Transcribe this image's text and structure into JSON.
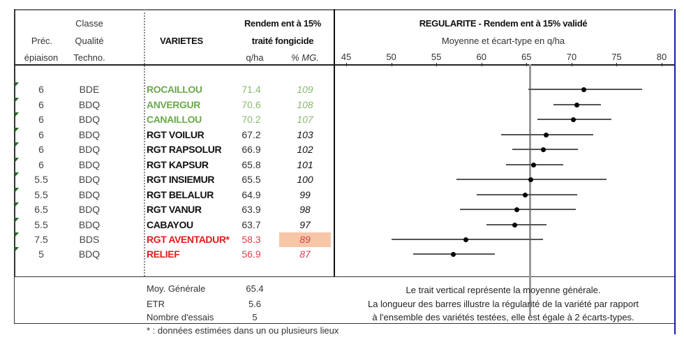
{
  "headers": {
    "prec_line1": "Préc.",
    "prec_line2": "épiaison",
    "classe_line1": "Classe",
    "classe_line2": "Qualité",
    "classe_line3": "Techno.",
    "varietes": "VARIETES",
    "rendement_line1": "Rendem ent à 15%",
    "rendement_line2": "traité fongicide",
    "unit_qha": "q/ha",
    "unit_pct": "% MG.",
    "chart_title": "REGULARITE - Rendem ent à 15% validé",
    "chart_subtitle": "Moyenne et écart-type en q/ha"
  },
  "rows": [
    {
      "prec": "6",
      "classe": "BDE",
      "variete": "ROCAILLOU",
      "qha": "71.4",
      "pct": "109",
      "group": "green"
    },
    {
      "prec": "6",
      "classe": "BDQ",
      "variete": "ANVERGUR",
      "qha": "70.6",
      "pct": "108",
      "group": "green"
    },
    {
      "prec": "6",
      "classe": "BDQ",
      "variete": "CANAILLOU",
      "qha": "70.2",
      "pct": "107",
      "group": "green"
    },
    {
      "prec": "6",
      "classe": "BDQ",
      "variete": "RGT VOILUR",
      "qha": "67.2",
      "pct": "103",
      "group": "black"
    },
    {
      "prec": "6",
      "classe": "BDQ",
      "variete": "RGT RAPSOLUR",
      "qha": "66.9",
      "pct": "102",
      "group": "black"
    },
    {
      "prec": "6",
      "classe": "BDQ",
      "variete": "RGT KAPSUR",
      "qha": "65.8",
      "pct": "101",
      "group": "black"
    },
    {
      "prec": "5.5",
      "classe": "BDQ",
      "variete": "RGT INSIEMUR",
      "qha": "65.5",
      "pct": "100",
      "group": "black"
    },
    {
      "prec": "5.5",
      "classe": "BDQ",
      "variete": "RGT BELALUR",
      "qha": "64.9",
      "pct": "99",
      "group": "black"
    },
    {
      "prec": "6.5",
      "classe": "BDQ",
      "variete": "RGT VANUR",
      "qha": "63.9",
      "pct": "98",
      "group": "black"
    },
    {
      "prec": "5.5",
      "classe": "BDQ",
      "variete": "CABAYOU",
      "qha": "63.7",
      "pct": "97",
      "group": "black"
    },
    {
      "prec": "7.5",
      "classe": "BDS",
      "variete": "RGT AVENTADUR*",
      "qha": "58.3",
      "pct": "89",
      "group": "red",
      "highlight": true
    },
    {
      "prec": "5",
      "classe": "BDQ",
      "variete": "RELIEF",
      "qha": "56.9",
      "pct": "87",
      "group": "red"
    }
  ],
  "summary": {
    "moy_label": "Moy. Générale",
    "moy_value": "65.4",
    "etr_label": "ETR",
    "etr_value": "5.6",
    "essais_label": "Nombre d'essais",
    "essais_value": "5",
    "footnote": "* : données estimées dans un ou plusieurs lieux"
  },
  "notes": {
    "line1": "Le trait vertical représente la moyenne générale.",
    "line2": "La longueur des barres illustre la régularité de la variété par rapport",
    "line3": "à l'ensemble des variétés testées, elle est égale à 2 écarts-types."
  },
  "colors": {
    "green_variety": "#6aaa4a",
    "red_variety": "#e21c1c",
    "highlight_cell": "#f7c6a6",
    "flag": "#1d6b1d",
    "mean_line": "#999999"
  },
  "chart_data": {
    "type": "scatter",
    "title": "REGULARITE - Rendem ent à 15% validé",
    "subtitle": "Moyenne et écart-type en q/ha",
    "xlabel": "q/ha",
    "ylabel": "",
    "xlim": [
      45,
      80
    ],
    "x_ticks": [
      45,
      50,
      55,
      60,
      65,
      70,
      75,
      80
    ],
    "mean_line": 65.4,
    "categories": [
      "ROCAILLOU",
      "ANVERGUR",
      "CANAILLOU",
      "RGT VOILUR",
      "RGT RAPSOLUR",
      "RGT KAPSUR",
      "RGT INSIEMUR",
      "RGT BELALUR",
      "RGT VANUR",
      "CABAYOU",
      "RGT AVENTADUR*",
      "RELIEF"
    ],
    "series": [
      {
        "name": "mean",
        "values": [
          71.4,
          70.6,
          70.2,
          67.2,
          66.9,
          65.8,
          65.5,
          64.9,
          63.9,
          63.7,
          58.3,
          56.9
        ]
      },
      {
        "name": "low",
        "values": [
          65.2,
          68.0,
          66.2,
          62.2,
          63.4,
          62.7,
          57.2,
          59.5,
          57.6,
          60.6,
          50.0,
          52.4
        ]
      },
      {
        "name": "high",
        "values": [
          77.8,
          73.3,
          74.4,
          72.4,
          70.7,
          69.1,
          73.9,
          70.6,
          70.5,
          67.2,
          66.8,
          61.5
        ]
      }
    ],
    "grid": false,
    "legend": "none"
  }
}
